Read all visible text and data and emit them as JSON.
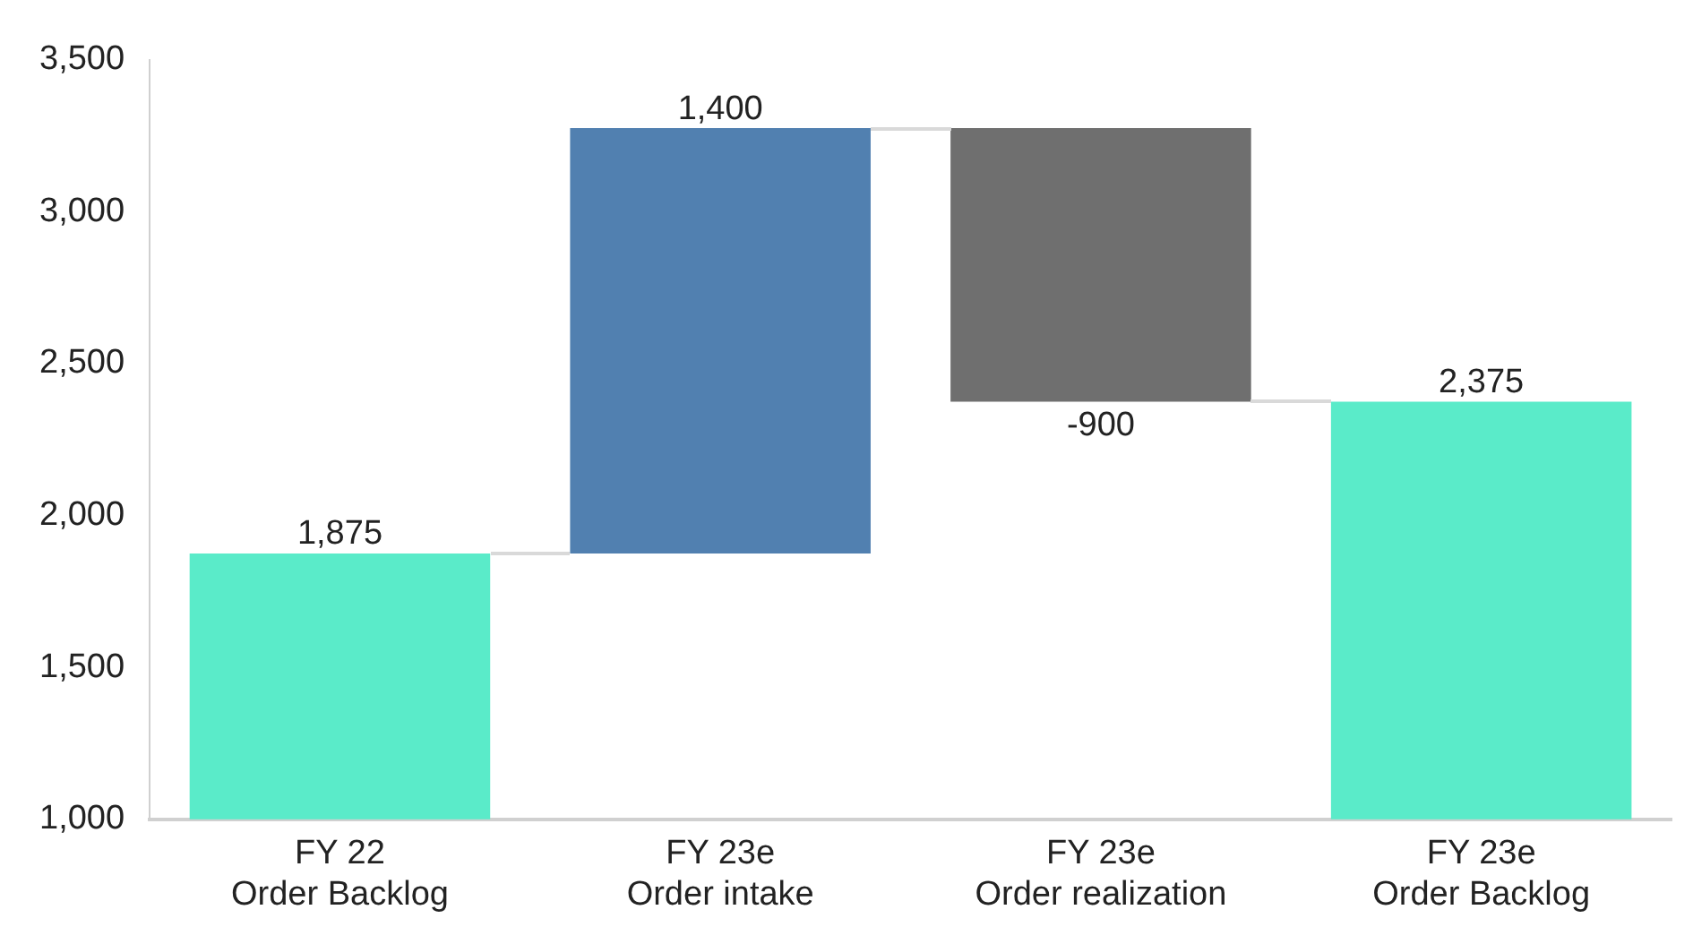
{
  "chart_data": {
    "type": "bar",
    "categories": [
      "FY 22\nOrder Backlog",
      "FY 23e\nOrder intake",
      "FY 23e\nOrder realization",
      "FY 23e\nOrder Backlog"
    ],
    "values": [
      1875,
      1400,
      -900,
      2375
    ],
    "base": [
      null,
      1875,
      3275,
      null
    ],
    "colors": [
      "#5aebc9",
      "#5180b0",
      "#6f6f6f",
      "#5aebc9"
    ],
    "value_labels": [
      "1,875",
      "1,400",
      "-900",
      "2,375"
    ],
    "ylim": [
      1000,
      3500
    ],
    "yticks": [
      {
        "value": 1000,
        "label": "1,000"
      },
      {
        "value": 1500,
        "label": "1,500"
      },
      {
        "value": 2000,
        "label": "2,000"
      },
      {
        "value": 2500,
        "label": "2,500"
      },
      {
        "value": 3000,
        "label": "3,000"
      },
      {
        "value": 3500,
        "label": "3,500"
      }
    ],
    "grid": false,
    "legend": false
  }
}
